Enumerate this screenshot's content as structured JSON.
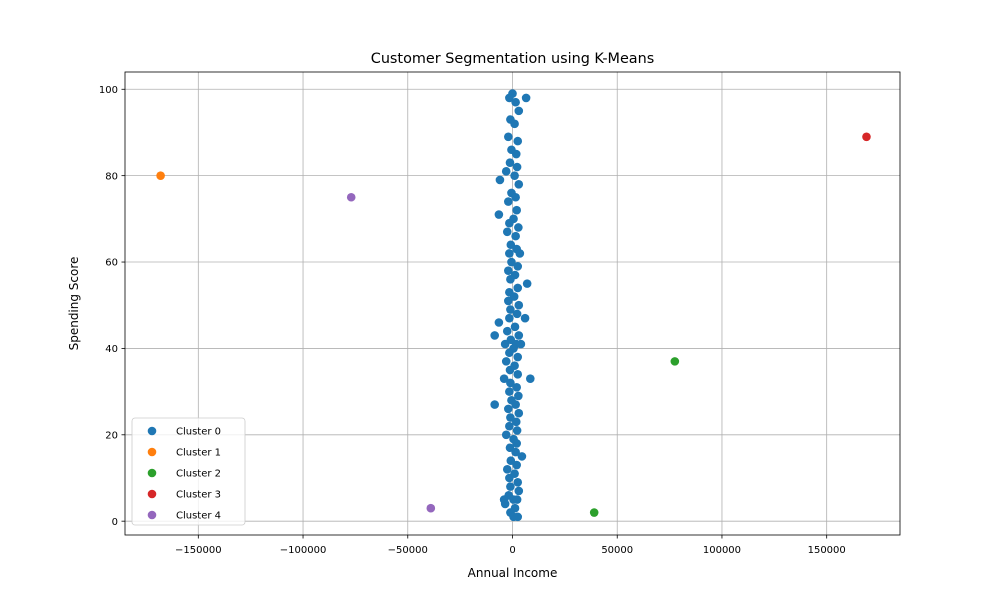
{
  "chart_data": {
    "type": "scatter",
    "title": "Customer Segmentation using K-Means",
    "xlabel": "Annual Income",
    "ylabel": "Spending Score",
    "xlim": [
      -185000,
      185000
    ],
    "ylim": [
      -3.2,
      104
    ],
    "xticks": [
      -150000,
      -100000,
      -50000,
      0,
      50000,
      100000,
      150000
    ],
    "xtick_labels": [
      "−150000",
      "−100000",
      "−50000",
      "0",
      "50000",
      "100000",
      "150000"
    ],
    "yticks": [
      0,
      20,
      40,
      60,
      80,
      100
    ],
    "ytick_labels": [
      "0",
      "20",
      "40",
      "60",
      "80",
      "100"
    ],
    "grid": true,
    "legend_position": "lower-left",
    "series": [
      {
        "name": "Cluster 0",
        "color": "#1f77b4",
        "points": [
          [
            0,
            99
          ],
          [
            -1500,
            98
          ],
          [
            1500,
            97
          ],
          [
            6500,
            98
          ],
          [
            3000,
            95
          ],
          [
            -1000,
            93
          ],
          [
            1000,
            92
          ],
          [
            -2000,
            89
          ],
          [
            2500,
            88
          ],
          [
            -500,
            86
          ],
          [
            1800,
            85
          ],
          [
            -1200,
            83
          ],
          [
            2200,
            82
          ],
          [
            -3000,
            81
          ],
          [
            1000,
            80
          ],
          [
            -6000,
            79
          ],
          [
            3000,
            78
          ],
          [
            -500,
            76
          ],
          [
            1500,
            75
          ],
          [
            -2000,
            74
          ],
          [
            2000,
            72
          ],
          [
            -6500,
            71
          ],
          [
            500,
            70
          ],
          [
            -1500,
            69
          ],
          [
            2800,
            68
          ],
          [
            -2500,
            67
          ],
          [
            1500,
            66
          ],
          [
            -800,
            64
          ],
          [
            2000,
            63
          ],
          [
            -1500,
            62
          ],
          [
            3500,
            62
          ],
          [
            -500,
            60
          ],
          [
            2500,
            59
          ],
          [
            -2000,
            58
          ],
          [
            1200,
            57
          ],
          [
            -1000,
            56
          ],
          [
            7000,
            55
          ],
          [
            2500,
            54
          ],
          [
            -1500,
            53
          ],
          [
            800,
            52
          ],
          [
            -2000,
            51
          ],
          [
            3000,
            50
          ],
          [
            -1000,
            49
          ],
          [
            2200,
            48
          ],
          [
            6000,
            47
          ],
          [
            -1500,
            47
          ],
          [
            -6500,
            46
          ],
          [
            1200,
            45
          ],
          [
            -2500,
            44
          ],
          [
            -8500,
            43
          ],
          [
            3000,
            43
          ],
          [
            -800,
            42
          ],
          [
            1800,
            41
          ],
          [
            -3500,
            41
          ],
          [
            4000,
            41
          ],
          [
            500,
            40
          ],
          [
            -1500,
            39
          ],
          [
            2500,
            38
          ],
          [
            -3000,
            37
          ],
          [
            1000,
            36
          ],
          [
            -1200,
            35
          ],
          [
            2500,
            34
          ],
          [
            -4000,
            33
          ],
          [
            8500,
            33
          ],
          [
            -1000,
            32
          ],
          [
            2000,
            31
          ],
          [
            -1500,
            30
          ],
          [
            2800,
            29
          ],
          [
            -500,
            28
          ],
          [
            -8500,
            27
          ],
          [
            1500,
            27
          ],
          [
            -2000,
            26
          ],
          [
            3000,
            25
          ],
          [
            -1000,
            24
          ],
          [
            1800,
            23
          ],
          [
            -1500,
            22
          ],
          [
            2200,
            21
          ],
          [
            -3000,
            20
          ],
          [
            500,
            19
          ],
          [
            2000,
            18
          ],
          [
            -1200,
            17
          ],
          [
            1500,
            16
          ],
          [
            4500,
            15
          ],
          [
            -800,
            14
          ],
          [
            2000,
            13
          ],
          [
            -2500,
            12
          ],
          [
            1000,
            11
          ],
          [
            -1500,
            10
          ],
          [
            2500,
            9
          ],
          [
            -1000,
            8
          ],
          [
            3000,
            7
          ],
          [
            -1800,
            6
          ],
          [
            500,
            5
          ],
          [
            -4000,
            5
          ],
          [
            2200,
            5
          ],
          [
            -3500,
            4
          ],
          [
            1200,
            3
          ],
          [
            -1000,
            2
          ],
          [
            2500,
            1
          ],
          [
            500,
            1
          ]
        ]
      },
      {
        "name": "Cluster 1",
        "color": "#ff7f0e",
        "points": [
          [
            -168000,
            80
          ]
        ]
      },
      {
        "name": "Cluster 2",
        "color": "#2ca02c",
        "points": [
          [
            77500,
            37
          ],
          [
            39000,
            2
          ]
        ]
      },
      {
        "name": "Cluster 3",
        "color": "#d62728",
        "points": [
          [
            169000,
            89
          ]
        ]
      },
      {
        "name": "Cluster 4",
        "color": "#9467bd",
        "points": [
          [
            -77000,
            75
          ],
          [
            -39000,
            3
          ]
        ]
      }
    ]
  }
}
